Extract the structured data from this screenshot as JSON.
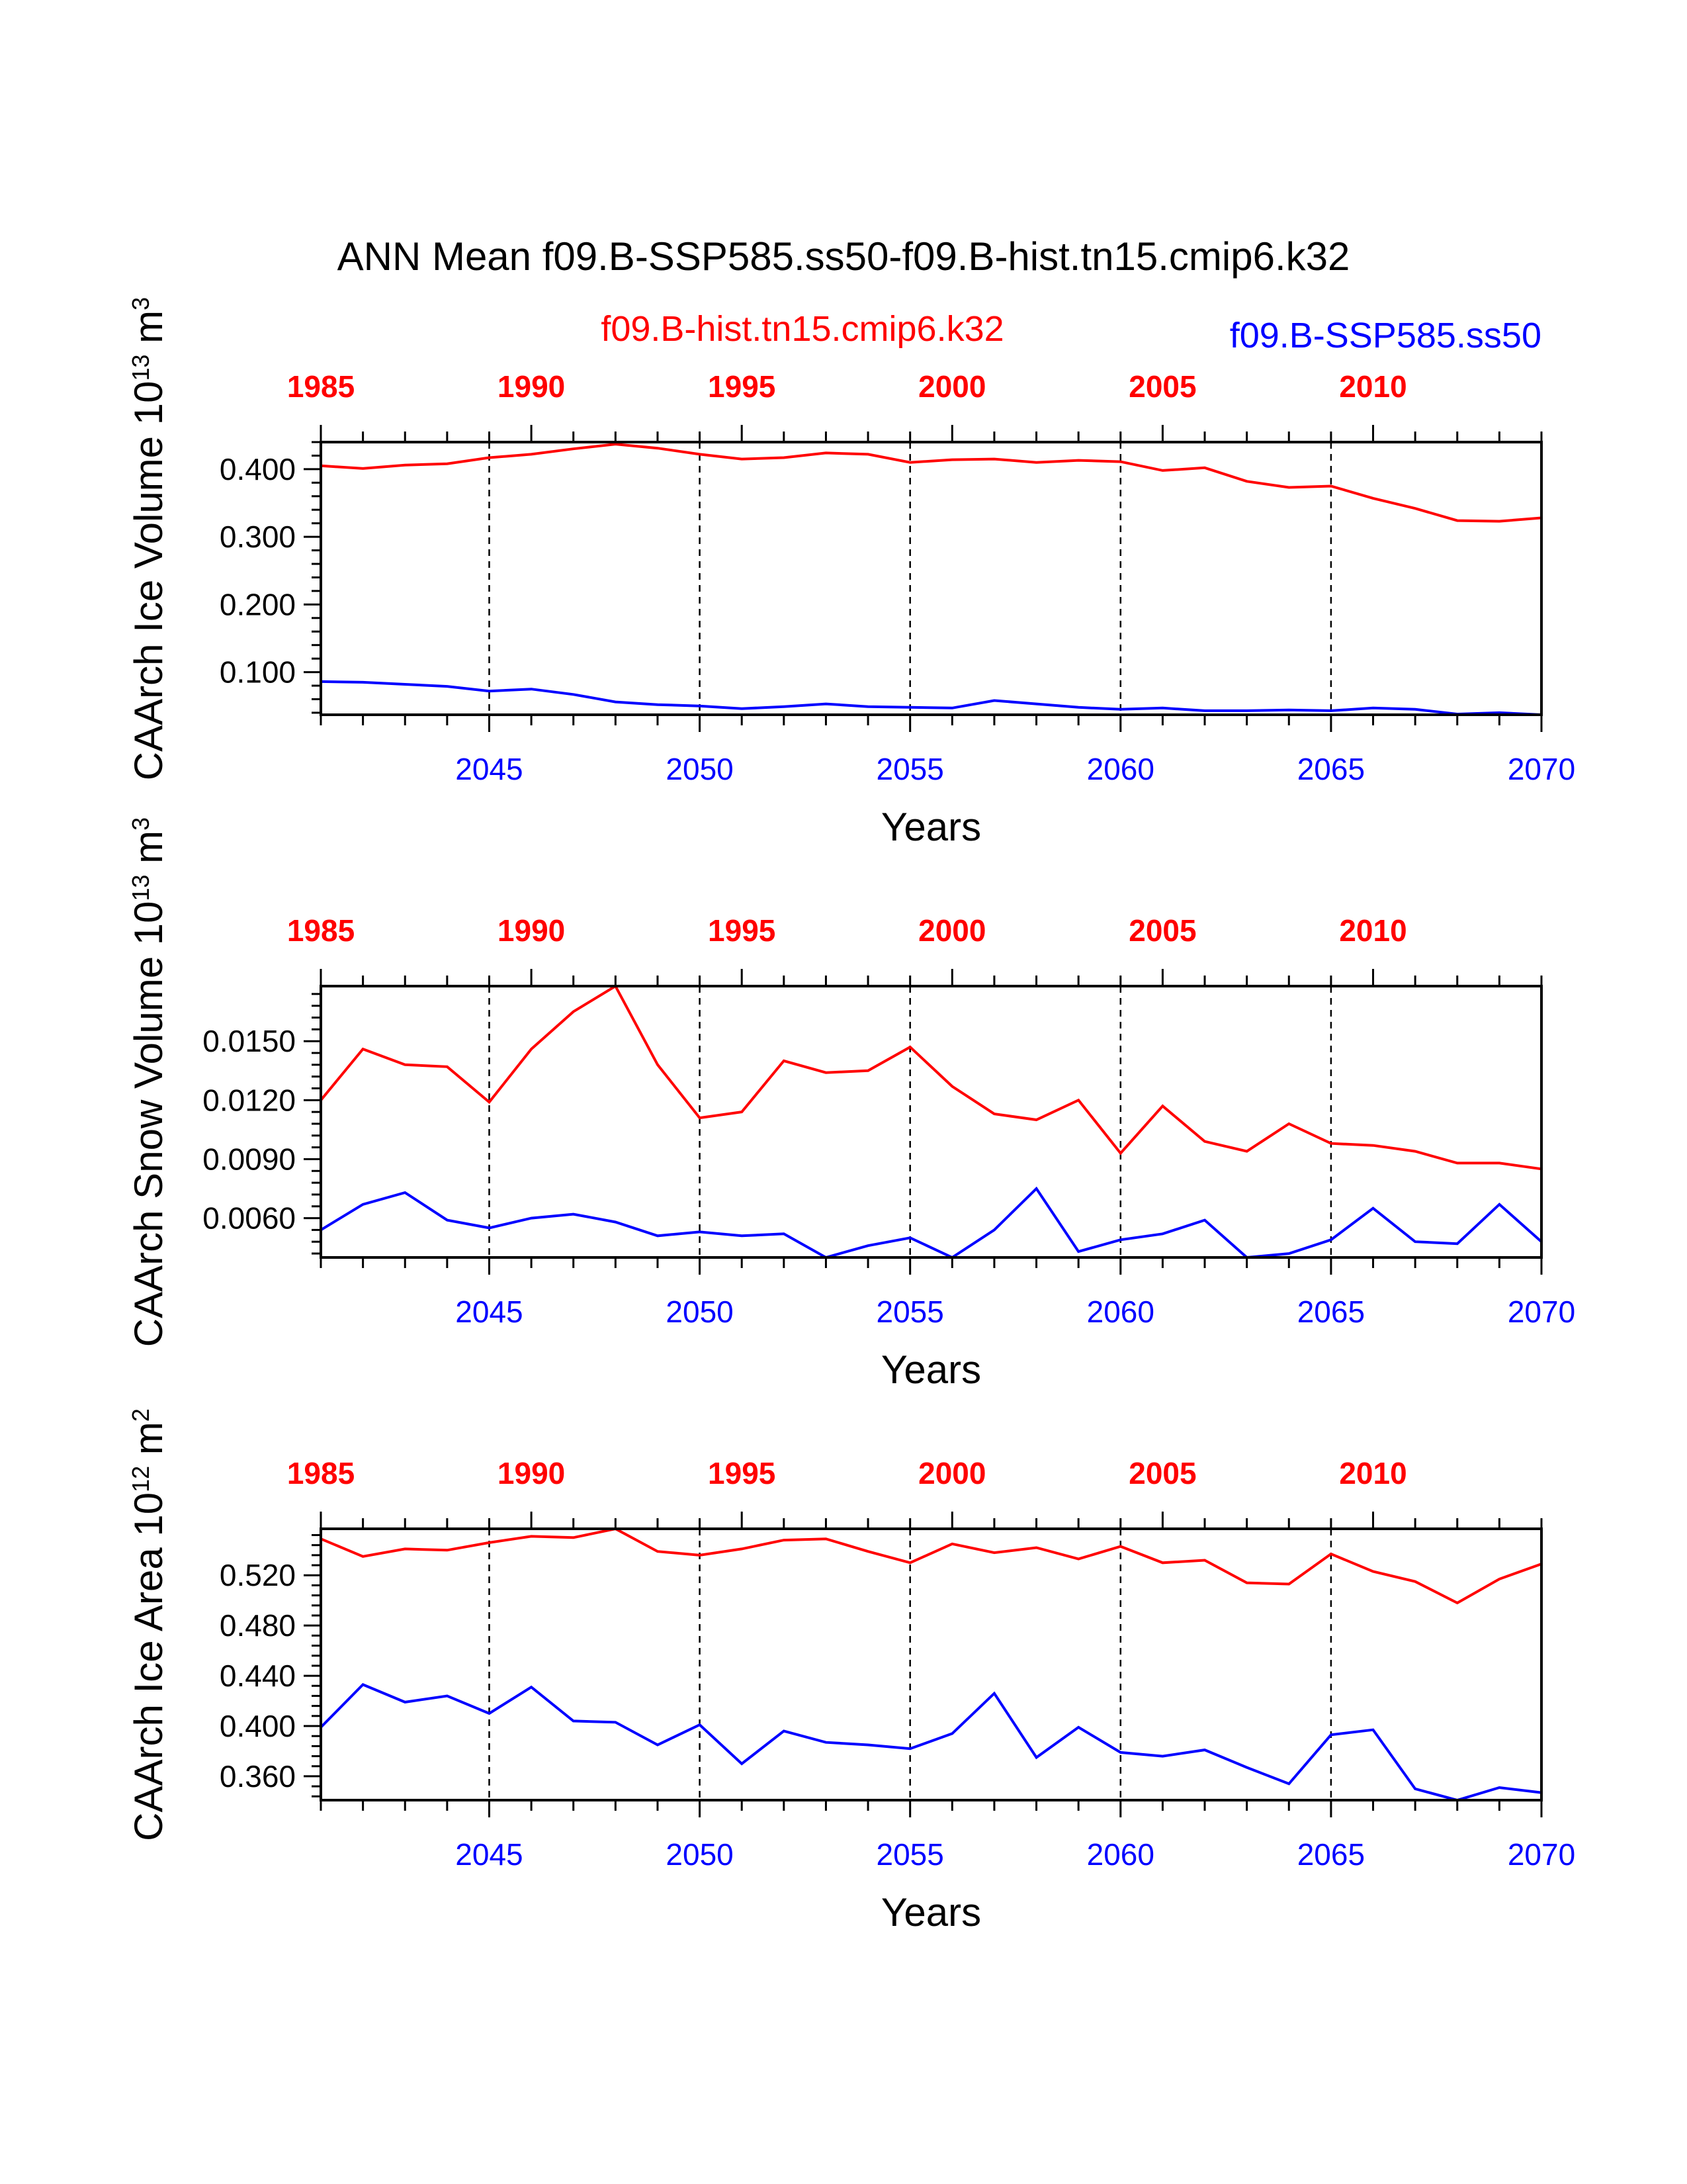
{
  "figure": {
    "title": "ANN Mean f09.B-SSP585.ss50-f09.B-hist.tn15.cmip6.k32",
    "legend": {
      "hist": "f09.B-hist.tn15.cmip6.k32",
      "ssp": "f09.B-SSP585.ss50"
    },
    "colors": {
      "hist": "#ff0000",
      "ssp": "#0000ff",
      "axis": "#000000"
    }
  },
  "chart_data": [
    {
      "type": "line",
      "ylabel": "CAArch Ice Volume 10^13 m^3",
      "ylabel_parts": {
        "base": "CAArch Ice Volume 10",
        "exp1": "13",
        "unit": " m",
        "exp2": "3"
      },
      "xlabel": "Years",
      "ylim": [
        0.037,
        0.44
      ],
      "yticks": [
        0.1,
        0.2,
        0.3,
        0.4
      ],
      "ytick_labels": [
        "0.100",
        "0.200",
        "0.300",
        "0.400"
      ],
      "bottom_axis": {
        "range": [
          2041,
          2070
        ],
        "ticks": [
          2045,
          2050,
          2055,
          2060,
          2065,
          2070
        ]
      },
      "top_axis": {
        "range": [
          1985,
          2014
        ],
        "ticks": [
          1985,
          1990,
          1995,
          2000,
          2005,
          2010
        ]
      },
      "series": [
        {
          "name": "f09.B-hist.tn15.cmip6.k32",
          "color": "#ff0000",
          "x": [
            1985,
            1986,
            1987,
            1988,
            1989,
            1990,
            1991,
            1992,
            1993,
            1994,
            1995,
            1996,
            1997,
            1998,
            1999,
            2000,
            2001,
            2002,
            2003,
            2004,
            2005,
            2006,
            2007,
            2008,
            2009,
            2010,
            2011,
            2012,
            2013,
            2014
          ],
          "values": [
            0.405,
            0.401,
            0.406,
            0.408,
            0.417,
            0.422,
            0.43,
            0.437,
            0.431,
            0.422,
            0.415,
            0.417,
            0.424,
            0.422,
            0.41,
            0.414,
            0.415,
            0.41,
            0.413,
            0.411,
            0.398,
            0.402,
            0.382,
            0.373,
            0.375,
            0.357,
            0.342,
            0.324,
            0.323,
            0.328
          ]
        },
        {
          "name": "f09.B-SSP585.ss50",
          "color": "#0000ff",
          "x": [
            2041,
            2042,
            2043,
            2044,
            2045,
            2046,
            2047,
            2048,
            2049,
            2050,
            2051,
            2052,
            2053,
            2054,
            2055,
            2056,
            2057,
            2058,
            2059,
            2060,
            2061,
            2062,
            2063,
            2064,
            2065,
            2066,
            2067,
            2068,
            2069,
            2070
          ],
          "values": [
            0.086,
            0.085,
            0.082,
            0.079,
            0.072,
            0.075,
            0.067,
            0.056,
            0.052,
            0.05,
            0.046,
            0.049,
            0.053,
            0.049,
            0.048,
            0.047,
            0.058,
            0.053,
            0.048,
            0.045,
            0.047,
            0.043,
            0.043,
            0.044,
            0.043,
            0.047,
            0.045,
            0.038,
            0.04,
            0.037
          ]
        }
      ]
    },
    {
      "type": "line",
      "ylabel": "CAArch Snow Volume 10^13 m^3",
      "ylabel_parts": {
        "base": "CAArch Snow Volume 10",
        "exp1": "13",
        "unit": " m",
        "exp2": "3"
      },
      "xlabel": "Years",
      "ylim": [
        0.004,
        0.0178
      ],
      "yticks": [
        0.006,
        0.009,
        0.012,
        0.015
      ],
      "ytick_labels": [
        "0.0060",
        "0.0090",
        "0.0120",
        "0.0150"
      ],
      "bottom_axis": {
        "range": [
          2041,
          2070
        ],
        "ticks": [
          2045,
          2050,
          2055,
          2060,
          2065,
          2070
        ]
      },
      "top_axis": {
        "range": [
          1985,
          2014
        ],
        "ticks": [
          1985,
          1990,
          1995,
          2000,
          2005,
          2010
        ]
      },
      "series": [
        {
          "name": "f09.B-hist.tn15.cmip6.k32",
          "color": "#ff0000",
          "x": [
            1985,
            1986,
            1987,
            1988,
            1989,
            1990,
            1991,
            1992,
            1993,
            1994,
            1995,
            1996,
            1997,
            1998,
            1999,
            2000,
            2001,
            2002,
            2003,
            2004,
            2005,
            2006,
            2007,
            2008,
            2009,
            2010,
            2011,
            2012,
            2013,
            2014
          ],
          "values": [
            0.012,
            0.0146,
            0.0138,
            0.0137,
            0.0119,
            0.0146,
            0.0165,
            0.0178,
            0.0138,
            0.0111,
            0.0114,
            0.014,
            0.0134,
            0.0135,
            0.0147,
            0.0127,
            0.0113,
            0.011,
            0.012,
            0.0093,
            0.0117,
            0.0099,
            0.0094,
            0.0108,
            0.0098,
            0.0097,
            0.0094,
            0.0088,
            0.0088,
            0.0085
          ]
        },
        {
          "name": "f09.B-SSP585.ss50",
          "color": "#0000ff",
          "x": [
            2041,
            2042,
            2043,
            2044,
            2045,
            2046,
            2047,
            2048,
            2049,
            2050,
            2051,
            2052,
            2053,
            2054,
            2055,
            2056,
            2057,
            2058,
            2059,
            2060,
            2061,
            2062,
            2063,
            2064,
            2065,
            2066,
            2067,
            2068,
            2069,
            2070
          ],
          "values": [
            0.0054,
            0.0067,
            0.0073,
            0.0059,
            0.0055,
            0.006,
            0.0062,
            0.0058,
            0.0051,
            0.0053,
            0.0051,
            0.0052,
            0.004,
            0.0046,
            0.005,
            0.004,
            0.0054,
            0.0075,
            0.0043,
            0.0049,
            0.0052,
            0.0059,
            0.004,
            0.0042,
            0.0049,
            0.0065,
            0.0048,
            0.0047,
            0.0067,
            0.0048
          ]
        }
      ]
    },
    {
      "type": "line",
      "ylabel": "CAArch Ice Area 10^12 m^2",
      "ylabel_parts": {
        "base": "CAArch Ice Area 10",
        "exp1": "12",
        "unit": " m",
        "exp2": "2"
      },
      "xlabel": "Years",
      "ylim": [
        0.341,
        0.557
      ],
      "yticks": [
        0.36,
        0.4,
        0.44,
        0.48,
        0.52
      ],
      "ytick_labels": [
        "0.360",
        "0.400",
        "0.440",
        "0.480",
        "0.520"
      ],
      "bottom_axis": {
        "range": [
          2041,
          2070
        ],
        "ticks": [
          2045,
          2050,
          2055,
          2060,
          2065,
          2070
        ]
      },
      "top_axis": {
        "range": [
          1985,
          2014
        ],
        "ticks": [
          1985,
          1990,
          1995,
          2000,
          2005,
          2010
        ]
      },
      "series": [
        {
          "name": "f09.B-hist.tn15.cmip6.k32",
          "color": "#ff0000",
          "x": [
            1985,
            1986,
            1987,
            1988,
            1989,
            1990,
            1991,
            1992,
            1993,
            1994,
            1995,
            1996,
            1997,
            1998,
            1999,
            2000,
            2001,
            2002,
            2003,
            2004,
            2005,
            2006,
            2007,
            2008,
            2009,
            2010,
            2011,
            2012,
            2013,
            2014
          ],
          "values": [
            0.549,
            0.535,
            0.541,
            0.54,
            0.546,
            0.551,
            0.55,
            0.557,
            0.539,
            0.536,
            0.541,
            0.548,
            0.549,
            0.539,
            0.53,
            0.545,
            0.538,
            0.542,
            0.533,
            0.543,
            0.53,
            0.532,
            0.514,
            0.513,
            0.537,
            0.523,
            0.515,
            0.498,
            0.517,
            0.529
          ]
        },
        {
          "name": "f09.B-SSP585.ss50",
          "color": "#0000ff",
          "x": [
            2041,
            2042,
            2043,
            2044,
            2045,
            2046,
            2047,
            2048,
            2049,
            2050,
            2051,
            2052,
            2053,
            2054,
            2055,
            2056,
            2057,
            2058,
            2059,
            2060,
            2061,
            2062,
            2063,
            2064,
            2065,
            2066,
            2067,
            2068,
            2069,
            2070
          ],
          "values": [
            0.399,
            0.433,
            0.419,
            0.424,
            0.41,
            0.431,
            0.404,
            0.403,
            0.385,
            0.401,
            0.37,
            0.396,
            0.387,
            0.385,
            0.382,
            0.394,
            0.426,
            0.375,
            0.399,
            0.379,
            0.376,
            0.381,
            0.367,
            0.354,
            0.393,
            0.397,
            0.35,
            0.341,
            0.351,
            0.347
          ]
        }
      ]
    }
  ]
}
